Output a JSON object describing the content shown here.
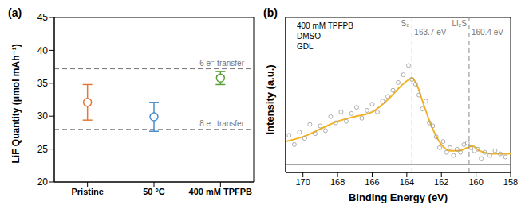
{
  "chart_data": [
    {
      "type": "scatter",
      "title": "(a)",
      "categories": [
        "Pristine",
        "50 °C",
        "400 mM TPFPB"
      ],
      "values": [
        32.1,
        29.9,
        35.8
      ],
      "errors": [
        2.7,
        2.2,
        1.0
      ],
      "colors": [
        "#e0793a",
        "#4a8fc9",
        "#5a9e3a"
      ],
      "marker": "open_circle",
      "y_label": "LiF Quantity (μmol mAh⁻¹)",
      "ylim": [
        20,
        45
      ],
      "yticks": [
        20,
        25,
        30,
        35,
        40,
        45
      ],
      "annotations": [
        {
          "text": "6 e⁻ transfer",
          "y": 37.2
        },
        {
          "text": "8 e⁻ transfer",
          "y": 28.0
        }
      ]
    },
    {
      "type": "line",
      "title": "(b)",
      "x_label": "Binding Energy (eV)",
      "y_label": "Intensity (a.u.)",
      "xlim": [
        171,
        158
      ],
      "xticks": [
        170,
        168,
        166,
        164,
        162,
        160,
        158
      ],
      "ylim": [
        0,
        10
      ],
      "tick_labels": "x",
      "texts": [
        "400 mM TPFPB",
        "DMSO",
        "GDL"
      ],
      "reference_lines": [
        {
          "x": 163.7,
          "label": "S₈",
          "value_label": "163.7 eV"
        },
        {
          "x": 160.4,
          "label": "Li₂S",
          "value_label": "160.4 eV"
        }
      ],
      "baseline": 0.5,
      "points": {
        "color": "#999999",
        "marker": "open_circle",
        "x": [
          170.8,
          170.5,
          170.2,
          169.9,
          169.6,
          169.3,
          169.0,
          168.7,
          168.4,
          168.1,
          167.8,
          167.5,
          167.2,
          166.9,
          166.6,
          166.3,
          166.0,
          165.7,
          165.4,
          165.1,
          164.8,
          164.5,
          164.2,
          163.9,
          163.7,
          163.5,
          163.3,
          163.1,
          162.9,
          162.7,
          162.5,
          162.3,
          162.1,
          161.9,
          161.7,
          161.5,
          161.3,
          161.1,
          160.9,
          160.7,
          160.5,
          160.3,
          160.1,
          159.9,
          159.7,
          159.5,
          159.2,
          158.9,
          158.6,
          158.3
        ],
        "y": [
          2.4,
          1.8,
          2.6,
          2.2,
          3.1,
          2.5,
          3.0,
          2.7,
          3.6,
          3.2,
          3.9,
          3.3,
          3.8,
          4.2,
          3.5,
          4.0,
          4.4,
          3.9,
          4.6,
          4.9,
          5.3,
          5.8,
          6.3,
          6.9,
          6.0,
          5.7,
          5.0,
          4.1,
          4.6,
          3.2,
          3.0,
          2.3,
          1.6,
          2.0,
          1.3,
          1.6,
          1.1,
          1.5,
          1.3,
          1.8,
          1.9,
          1.6,
          1.4,
          1.5,
          0.9,
          1.3,
          1.1,
          1.4,
          1.2,
          1.0
        ]
      },
      "fit": {
        "color": "#f0b323",
        "line_style": "solid",
        "x": [
          171,
          170,
          169,
          168,
          167,
          166,
          165.5,
          165,
          164.5,
          164,
          163.7,
          163.4,
          163,
          162.5,
          162,
          161.5,
          161,
          160.5,
          160.2,
          159.8,
          159,
          158
        ],
        "y": [
          2.0,
          2.3,
          2.8,
          3.3,
          3.6,
          3.9,
          4.3,
          4.8,
          5.4,
          5.9,
          6.1,
          5.6,
          4.3,
          2.8,
          1.8,
          1.4,
          1.4,
          1.6,
          1.7,
          1.4,
          1.2,
          1.2
        ]
      }
    }
  ]
}
